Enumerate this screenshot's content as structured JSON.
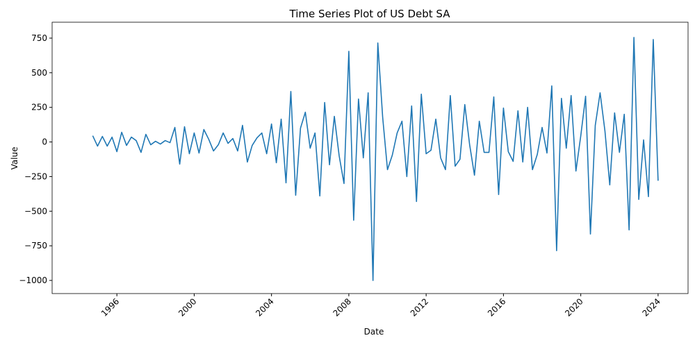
{
  "chart_data": {
    "type": "line",
    "title": "Time Series Plot of US Debt SA",
    "x_label": "Date",
    "y_label": "Value",
    "x": [
      1994.75,
      1995,
      1995.25,
      1995.5,
      1995.75,
      1996,
      1996.25,
      1996.5,
      1996.75,
      1997,
      1997.25,
      1997.5,
      1997.75,
      1998,
      1998.25,
      1998.5,
      1998.75,
      1999,
      1999.25,
      1999.5,
      1999.75,
      2000,
      2000.25,
      2000.5,
      2000.75,
      2001,
      2001.25,
      2001.5,
      2001.75,
      2002,
      2002.25,
      2002.5,
      2002.75,
      2003,
      2003.25,
      2003.5,
      2003.75,
      2004,
      2004.25,
      2004.5,
      2004.75,
      2005,
      2005.25,
      2005.5,
      2005.75,
      2006,
      2006.25,
      2006.5,
      2006.75,
      2007,
      2007.25,
      2007.5,
      2007.75,
      2008,
      2008.25,
      2008.5,
      2008.75,
      2009,
      2009.25,
      2009.5,
      2009.75,
      2010,
      2010.25,
      2010.5,
      2010.75,
      2011,
      2011.25,
      2011.5,
      2011.75,
      2012,
      2012.25,
      2012.5,
      2012.75,
      2013,
      2013.25,
      2013.5,
      2013.75,
      2014,
      2014.25,
      2014.5,
      2014.75,
      2015,
      2015.25,
      2015.5,
      2015.75,
      2016,
      2016.25,
      2016.5,
      2016.75,
      2017,
      2017.25,
      2017.5,
      2017.75,
      2018,
      2018.25,
      2018.5,
      2018.75,
      2019,
      2019.25,
      2019.5,
      2019.75,
      2020,
      2020.25,
      2020.5,
      2020.75,
      2021,
      2021.25,
      2021.5,
      2021.75,
      2022,
      2022.25,
      2022.5,
      2022.75,
      2023,
      2023.25,
      2023.5,
      2023.75,
      2024
    ],
    "series": [
      {
        "name": "US Debt SA",
        "color": "#1f77b4",
        "values": [
          45,
          -30,
          40,
          -30,
          35,
          -70,
          70,
          -25,
          35,
          10,
          -75,
          55,
          -20,
          5,
          -15,
          10,
          -5,
          105,
          -160,
          110,
          -85,
          65,
          -80,
          90,
          20,
          -65,
          -20,
          65,
          -10,
          25,
          -65,
          120,
          -145,
          -25,
          30,
          65,
          -85,
          130,
          -150,
          165,
          -295,
          365,
          -385,
          100,
          215,
          -45,
          65,
          -390,
          285,
          -165,
          185,
          -100,
          -300,
          655,
          -565,
          310,
          -115,
          355,
          -1000,
          715,
          180,
          -200,
          -95,
          65,
          150,
          -250,
          260,
          -430,
          345,
          -85,
          -60,
          165,
          -115,
          -200,
          335,
          -175,
          -125,
          270,
          -20,
          -240,
          150,
          -75,
          -75,
          325,
          -380,
          245,
          -70,
          -140,
          225,
          -145,
          250,
          -200,
          -90,
          105,
          -80,
          405,
          -785,
          315,
          -45,
          335,
          -210,
          45,
          330,
          -665,
          120,
          355,
          80,
          -310,
          210,
          -75,
          200,
          -635,
          755,
          -415,
          15,
          -395,
          740,
          -280
        ]
      }
    ],
    "xlim": [
      1992.65,
      2025.55
    ],
    "xticks": [
      1996,
      2000,
      2004,
      2008,
      2012,
      2016,
      2020,
      2024
    ],
    "ylim": [
      -1095,
      865
    ],
    "yticks": [
      {
        "value": -1000,
        "label": "−1000"
      },
      {
        "value": -750,
        "label": "−750"
      },
      {
        "value": -500,
        "label": "−500"
      },
      {
        "value": -250,
        "label": "−250"
      },
      0,
      250,
      500,
      750,
      {
        "value": 0,
        "label": "0"
      }
    ]
  }
}
